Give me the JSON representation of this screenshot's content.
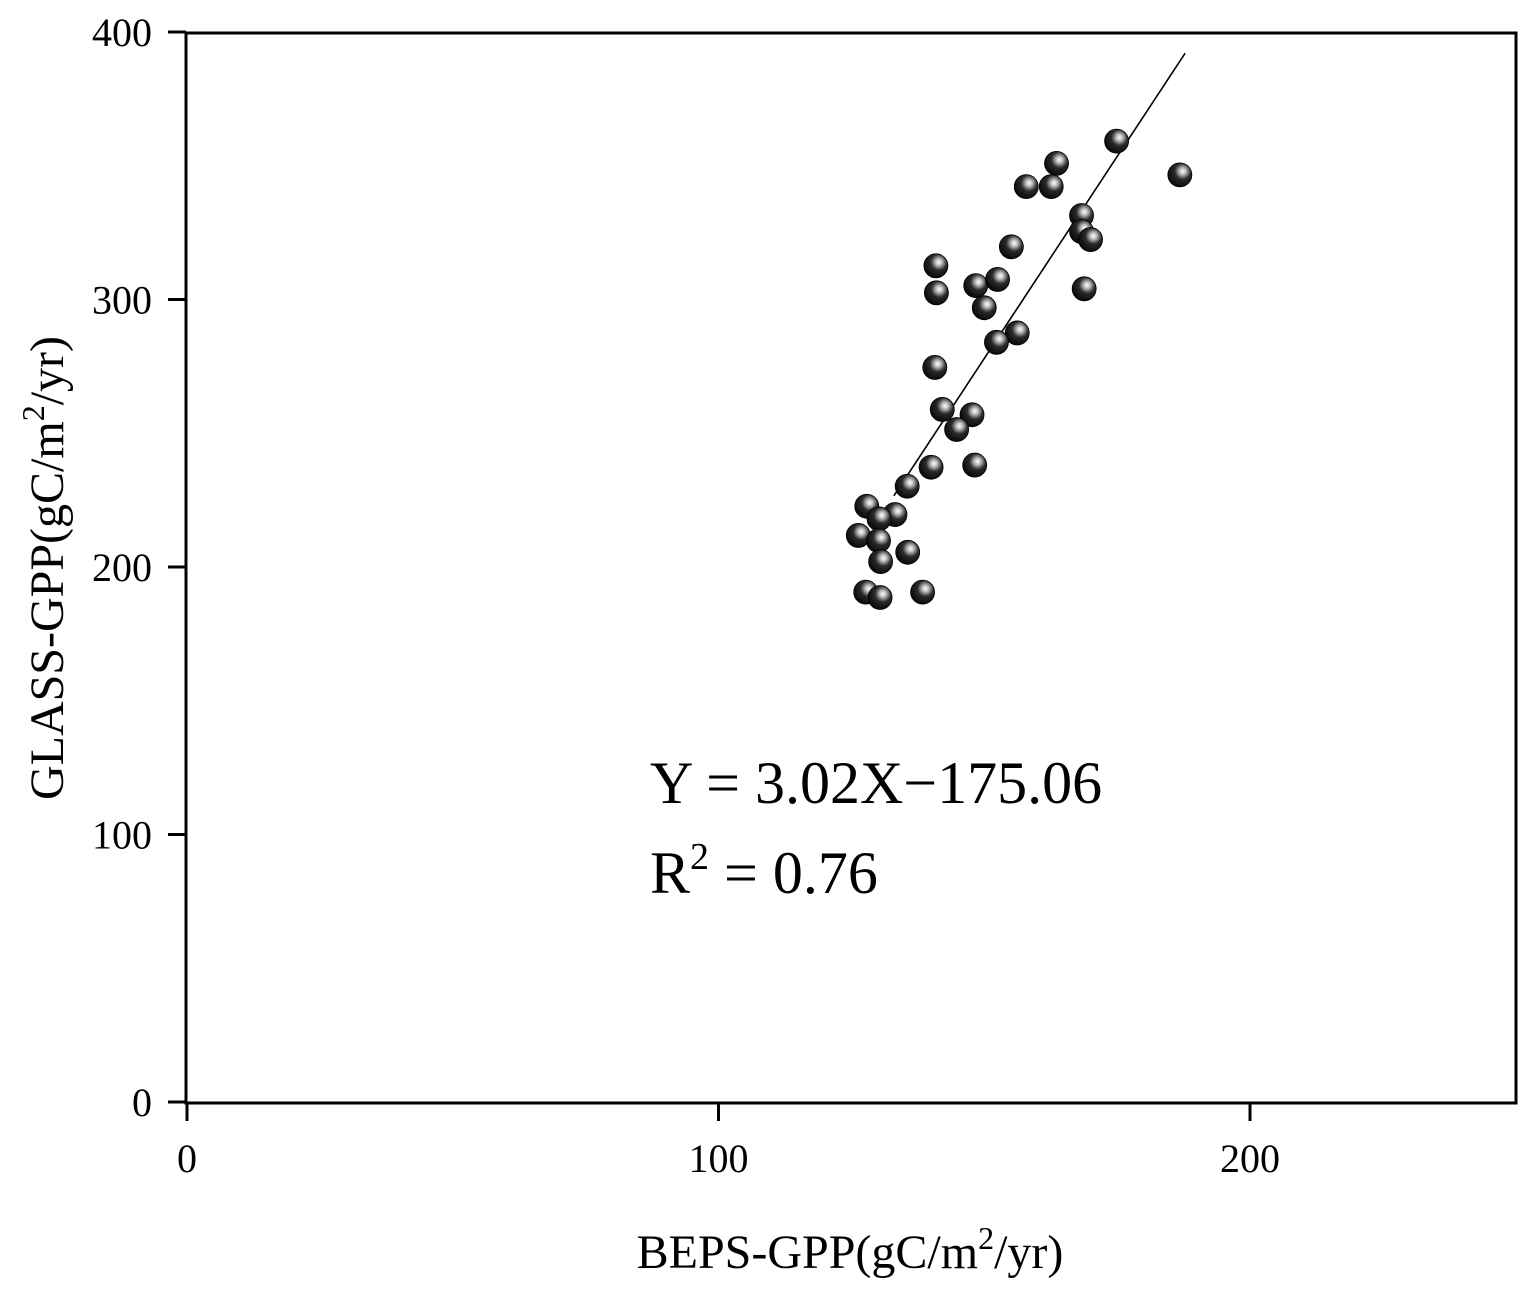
{
  "chart_data": {
    "type": "scatter",
    "title": "",
    "xlabel": {
      "prefix": "BEPS-GPP(gC/m",
      "sup": "2",
      "suffix": "/yr)"
    },
    "ylabel": {
      "prefix": "GLASS-GPP(gC/m",
      "sup": "2",
      "suffix": "/yr)"
    },
    "xlim": [
      0,
      250
    ],
    "ylim": [
      0,
      400
    ],
    "xticks": [
      "0",
      "100",
      "200"
    ],
    "yticks": [
      "0",
      "100",
      "200",
      "300",
      "400"
    ],
    "grid": false,
    "legend": "none",
    "marker_color": "#000000",
    "line_color": "#000000",
    "points": [
      {
        "x": 174.9,
        "y": 359.2
      },
      {
        "x": 163.6,
        "y": 350.9
      },
      {
        "x": 157.9,
        "y": 342.2
      },
      {
        "x": 162.6,
        "y": 342.2
      },
      {
        "x": 186.8,
        "y": 346.6
      },
      {
        "x": 168.3,
        "y": 331.4
      },
      {
        "x": 168.3,
        "y": 325.4
      },
      {
        "x": 170.0,
        "y": 322.4
      },
      {
        "x": 155.1,
        "y": 319.7
      },
      {
        "x": 140.9,
        "y": 312.6
      },
      {
        "x": 141.0,
        "y": 302.5
      },
      {
        "x": 148.4,
        "y": 305.2
      },
      {
        "x": 152.5,
        "y": 307.5
      },
      {
        "x": 150.0,
        "y": 296.9
      },
      {
        "x": 168.8,
        "y": 304.0
      },
      {
        "x": 156.2,
        "y": 287.5
      },
      {
        "x": 152.3,
        "y": 284.0
      },
      {
        "x": 140.7,
        "y": 274.6
      },
      {
        "x": 142.1,
        "y": 258.9
      },
      {
        "x": 147.7,
        "y": 256.9
      },
      {
        "x": 144.8,
        "y": 251.4
      },
      {
        "x": 140.0,
        "y": 237.3
      },
      {
        "x": 148.2,
        "y": 238.1
      },
      {
        "x": 135.5,
        "y": 230.2
      },
      {
        "x": 127.9,
        "y": 222.7
      },
      {
        "x": 133.2,
        "y": 219.6
      },
      {
        "x": 130.2,
        "y": 218.0
      },
      {
        "x": 126.3,
        "y": 211.8
      },
      {
        "x": 130.1,
        "y": 209.8
      },
      {
        "x": 135.6,
        "y": 205.5
      },
      {
        "x": 130.5,
        "y": 202.0
      },
      {
        "x": 127.7,
        "y": 190.6
      },
      {
        "x": 138.4,
        "y": 190.6
      },
      {
        "x": 130.4,
        "y": 188.6
      }
    ],
    "fit": {
      "slope": 3.02,
      "intercept": -175.06,
      "x_range": [
        133,
        187.8
      ]
    },
    "annotations": {
      "equation": "Y = 3.02X−175.06",
      "r2_prefix": "R",
      "r2_sup": "2",
      "r2_value": " = 0.76"
    }
  }
}
